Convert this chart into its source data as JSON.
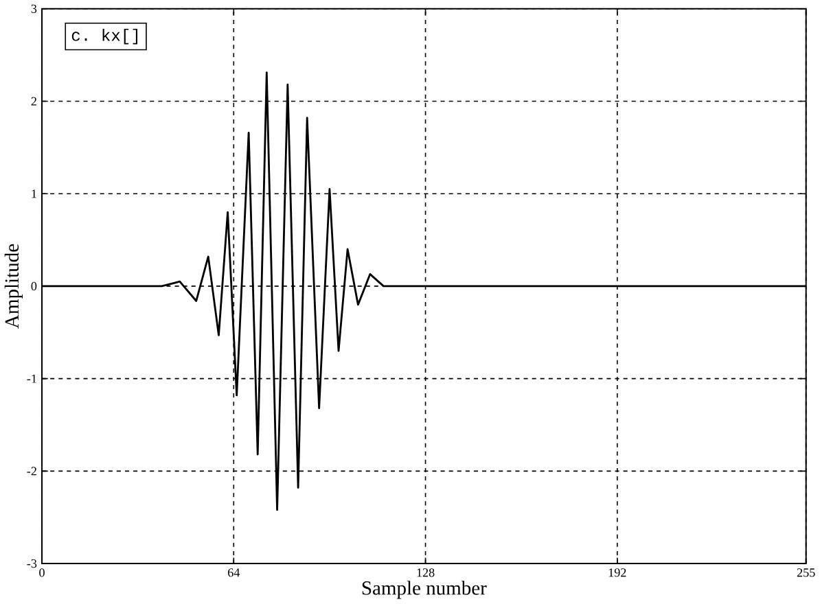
{
  "chart_data": {
    "type": "line",
    "xlabel": "Sample number",
    "ylabel": "Amplitude",
    "annotations": [
      "c. kx[]"
    ],
    "x": [
      0,
      40,
      46,
      51.5,
      55.5,
      59,
      62,
      65,
      69,
      72,
      75,
      78.5,
      82,
      85.5,
      88.5,
      92.5,
      96,
      99,
      102,
      105.5,
      109.5,
      114,
      255
    ],
    "series": [
      {
        "color": "#000000",
        "values": [
          0,
          0,
          0.05,
          -0.16,
          0.32,
          -0.53,
          0.8,
          -1.18,
          1.66,
          -1.82,
          2.31,
          -2.42,
          2.18,
          -2.18,
          1.82,
          -1.32,
          1.05,
          -0.7,
          0.4,
          -0.2,
          0.13,
          0,
          0
        ]
      }
    ],
    "xlim": [
      0,
      255
    ],
    "ylim": [
      -3,
      3
    ],
    "xticks": [
      0,
      64,
      128,
      192,
      255
    ],
    "yticks": [
      -3,
      -2,
      -1,
      0,
      1,
      2,
      3
    ],
    "grid": true,
    "marker": "none",
    "line_style": "solid"
  }
}
